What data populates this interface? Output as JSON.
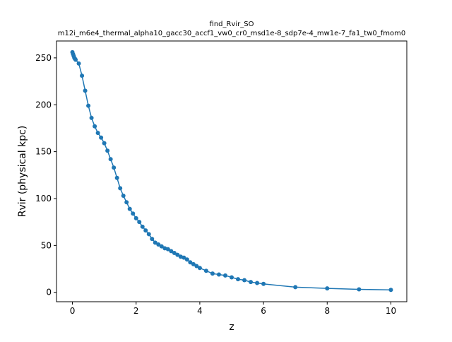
{
  "figure": {
    "title": "find_Rvir_SO",
    "subtitle": "m12i_m6e4_thermal_alpha10_gacc30_accf1_vw0_cr0_msd1e-8_sdp7e-4_mw1e-7_fa1_tw0_fmom0"
  },
  "chart_data": {
    "type": "line",
    "title": "find_Rvir_SO",
    "subtitle": "m12i_m6e4_thermal_alpha10_gacc30_accf1_vw0_cr0_msd1e-8_sdp7e-4_mw1e-7_fa1_tw0_fmom0",
    "xlabel": "z",
    "ylabel": "Rvir (physical kpc)",
    "xlim": [
      -0.5,
      10.5
    ],
    "ylim": [
      -10,
      268
    ],
    "xticks": [
      0,
      2,
      4,
      6,
      8,
      10
    ],
    "yticks": [
      0,
      50,
      100,
      150,
      200,
      250
    ],
    "grid": false,
    "legend": false,
    "series_color": "#1f77b4",
    "marker": "circle",
    "series": [
      {
        "x": [
          0.0,
          0.02,
          0.04,
          0.06,
          0.08,
          0.1,
          0.2,
          0.3,
          0.4,
          0.5,
          0.6,
          0.7,
          0.8,
          0.9,
          1.0,
          1.1,
          1.2,
          1.3,
          1.4,
          1.5,
          1.6,
          1.7,
          1.8,
          1.9,
          2.0,
          2.1,
          2.2,
          2.3,
          2.4,
          2.5,
          2.6,
          2.7,
          2.8,
          2.9,
          3.0,
          3.1,
          3.2,
          3.3,
          3.4,
          3.5,
          3.6,
          3.7,
          3.8,
          3.9,
          4.0,
          4.2,
          4.4,
          4.6,
          4.8,
          5.0,
          5.2,
          5.4,
          5.6,
          5.8,
          6.0,
          7.0,
          8.0,
          9.0,
          10.0
        ],
        "y": [
          256,
          254,
          252,
          250,
          249,
          248,
          244,
          231,
          215,
          199,
          186,
          177,
          170,
          165,
          159,
          151,
          142,
          133,
          122,
          111,
          103,
          96,
          89,
          84,
          79,
          75,
          70,
          66,
          62,
          57,
          53,
          51,
          49,
          47,
          46,
          44,
          42,
          40,
          38,
          37,
          35,
          32,
          30,
          28,
          26,
          23,
          20,
          19,
          18,
          16,
          14,
          13,
          11,
          10,
          9,
          5.5,
          4.2,
          3.2,
          2.6
        ]
      }
    ]
  }
}
